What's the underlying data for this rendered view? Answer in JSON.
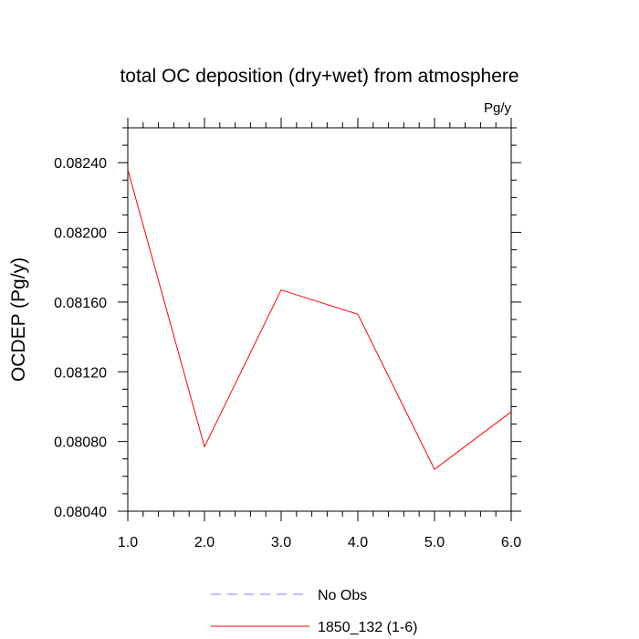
{
  "chart_data": {
    "type": "line",
    "title": "total OC deposition (dry+wet) from atmosphere",
    "units_label": "Pg/y",
    "ylabel": "OCDEP  (Pg/y)",
    "xlabel": "",
    "xlim": [
      1.0,
      6.0
    ],
    "ylim": [
      0.0804,
      0.0826
    ],
    "x_ticks": [
      "1.0",
      "2.0",
      "3.0",
      "4.0",
      "5.0",
      "6.0"
    ],
    "x_tick_values": [
      1,
      2,
      3,
      4,
      5,
      6
    ],
    "y_ticks": [
      "0.08040",
      "0.08080",
      "0.08120",
      "0.08160",
      "0.08200",
      "0.08240"
    ],
    "y_tick_values": [
      0.0804,
      0.0808,
      0.0812,
      0.0816,
      0.082,
      0.0824
    ],
    "grid": false,
    "legend_position": "bottom",
    "series": [
      {
        "name": "1850_132 (1-6)",
        "color": "#ff0000",
        "style": "solid",
        "x": [
          1,
          2,
          3,
          4,
          5,
          6
        ],
        "y": [
          0.08236,
          0.08077,
          0.08167,
          0.08153,
          0.08064,
          0.08097
        ]
      }
    ],
    "legend": [
      {
        "label": "No Obs",
        "color": "#8080ff",
        "style": "dashed"
      },
      {
        "label": "1850_132 (1-6)",
        "color": "#ff0000",
        "style": "solid"
      }
    ]
  }
}
